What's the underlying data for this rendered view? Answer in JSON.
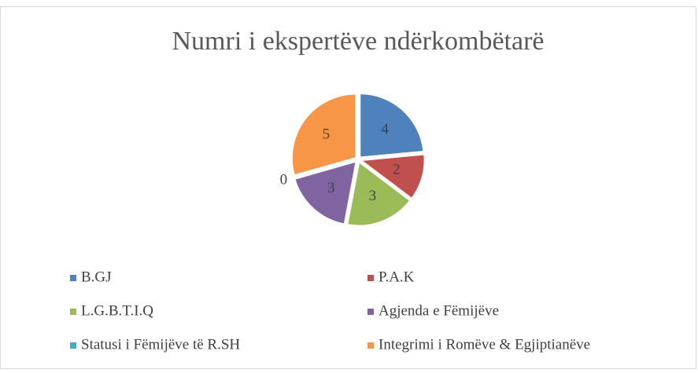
{
  "chart_data": {
    "type": "pie",
    "title": "Numri i ekspertëve ndërkombëtarë",
    "categories": [
      "B.GJ",
      "P.A.K",
      "L.G.B.T.I.Q",
      "Agjenda e Fëmijëve",
      "Statusi i Fëmijëve të R.SH",
      "Integrimi i Romëve & Egjiptianëve"
    ],
    "values": [
      4,
      2,
      3,
      3,
      0,
      5
    ],
    "colors": [
      "#4f81bd",
      "#c0504d",
      "#9bbb59",
      "#8064a2",
      "#4bacc6",
      "#f79646"
    ],
    "legend": "bottom"
  }
}
